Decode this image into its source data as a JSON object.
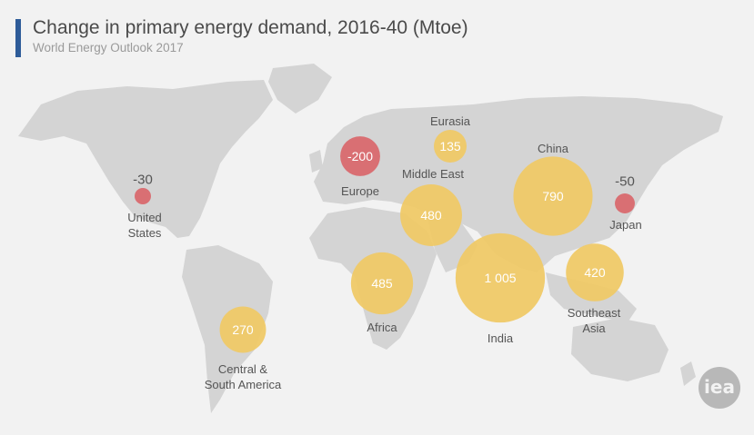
{
  "header": {
    "title": "Change in primary energy demand, 2016-40 (Mtoe)",
    "subtitle": "World Energy Outlook 2017"
  },
  "colors": {
    "increase": "#f0c964",
    "decrease": "#d9666a",
    "land": "#d4d4d4",
    "background": "#f2f2f2",
    "accent": "#2e5c99"
  },
  "regions": [
    {
      "id": "united-states",
      "name": "United\nStates",
      "value": "-30"
    },
    {
      "id": "central-south-america",
      "name": "Central &\nSouth America",
      "value": "270"
    },
    {
      "id": "europe",
      "name": "Europe",
      "value": "-200"
    },
    {
      "id": "eurasia",
      "name": "Eurasia",
      "value": "135"
    },
    {
      "id": "middle-east",
      "name": "Middle East",
      "value": "480"
    },
    {
      "id": "africa",
      "name": "Africa",
      "value": "485"
    },
    {
      "id": "india",
      "name": "India",
      "value": "1 005"
    },
    {
      "id": "china",
      "name": "China",
      "value": "790"
    },
    {
      "id": "southeast-asia",
      "name": "Southeast\nAsia",
      "value": "420"
    },
    {
      "id": "japan",
      "name": "Japan",
      "value": "-50"
    }
  ],
  "logo": {
    "text": "iea"
  }
}
